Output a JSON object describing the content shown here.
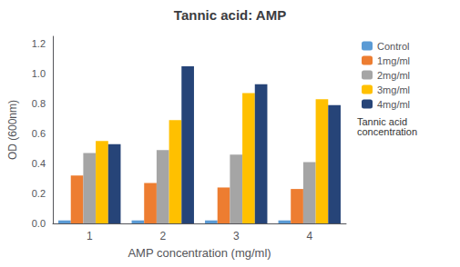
{
  "chart_data": {
    "type": "bar",
    "title": "Tannic acid: AMP",
    "xlabel": "AMP concentration (mg/ml)",
    "ylabel": "OD (600nm)",
    "categories": [
      "1",
      "2",
      "3",
      "4"
    ],
    "series": [
      {
        "name": "Control",
        "color": "#5B9BD5",
        "values": [
          0.02,
          0.02,
          0.02,
          0.02
        ]
      },
      {
        "name": "1mg/ml",
        "color": "#ED7D31",
        "values": [
          0.32,
          0.27,
          0.24,
          0.23
        ]
      },
      {
        "name": "2mg/ml",
        "color": "#A5A5A5",
        "values": [
          0.47,
          0.49,
          0.46,
          0.41
        ]
      },
      {
        "name": "3mg/ml",
        "color": "#FFC000",
        "values": [
          0.55,
          0.69,
          0.87,
          0.83
        ]
      },
      {
        "name": "4mg/ml",
        "color": "#264478",
        "values": [
          0.53,
          1.05,
          0.93,
          0.79
        ]
      }
    ],
    "ylim": [
      0,
      1.25
    ],
    "yticks": [
      {
        "value": 0,
        "label": "0.0"
      },
      0.2,
      0.4,
      0.6,
      0.8,
      {
        "value": 1,
        "label": "1.0"
      },
      1.2
    ],
    "grid": false,
    "legend": "right",
    "annotation": "Tannic acid\nconcentration"
  }
}
